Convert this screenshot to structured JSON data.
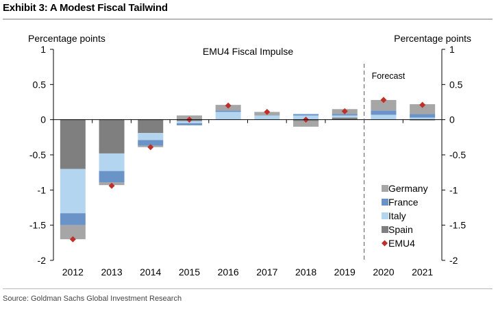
{
  "exhibit_title": "Exhibit 3: A Modest Fiscal Tailwind",
  "source": "Source: Goldman Sachs Global Investment Research",
  "colors": {
    "Germany": "#a6a6a6",
    "France": "#6a94c8",
    "Italy": "#b4d5f0",
    "Spain": "#7f7f7f",
    "EMU4": "#c0302a",
    "axis": "#000000",
    "forecast_line": "#555555"
  },
  "chart_data": {
    "type": "bar",
    "subtype": "stacked",
    "title": "EMU4 Fiscal Impulse",
    "ylabel_left": "Percentage points",
    "ylabel_right": "Percentage points",
    "ylim": [
      -2,
      1
    ],
    "yticks": [
      1,
      0.5,
      0,
      -0.5,
      -1,
      -1.5,
      -2
    ],
    "ytick_labels": [
      "1",
      "0.5",
      "0",
      "-0.5",
      "-1",
      "-1.5",
      "-2"
    ],
    "categories": [
      "2012",
      "2013",
      "2014",
      "2015",
      "2016",
      "2017",
      "2018",
      "2019",
      "2020",
      "2021"
    ],
    "series": [
      {
        "name": "Spain",
        "values": [
          -0.7,
          -0.48,
          -0.19,
          -0.02,
          0.0,
          0.0,
          -0.02,
          0.03,
          0.0,
          -0.01
        ]
      },
      {
        "name": "Italy",
        "values": [
          -0.63,
          -0.25,
          -0.1,
          -0.03,
          0.11,
          0.06,
          0.06,
          0.03,
          0.07,
          0.03
        ]
      },
      {
        "name": "France",
        "values": [
          -0.17,
          -0.16,
          -0.08,
          -0.03,
          0.02,
          0.0,
          0.02,
          0.02,
          0.06,
          0.05
        ]
      },
      {
        "name": "Germany",
        "values": [
          -0.2,
          -0.04,
          -0.02,
          0.06,
          0.08,
          0.05,
          -0.08,
          0.07,
          0.15,
          0.14
        ]
      }
    ],
    "emu4": {
      "name": "EMU4",
      "values": [
        -1.7,
        -0.94,
        -0.39,
        0.0,
        0.2,
        0.11,
        0.0,
        0.12,
        0.28,
        0.21
      ]
    },
    "legend": [
      "Germany",
      "France",
      "Italy",
      "Spain",
      "EMU4"
    ],
    "legend_position": "bottom-right",
    "forecast": {
      "label": "Forecast",
      "after_category": "2019"
    }
  }
}
